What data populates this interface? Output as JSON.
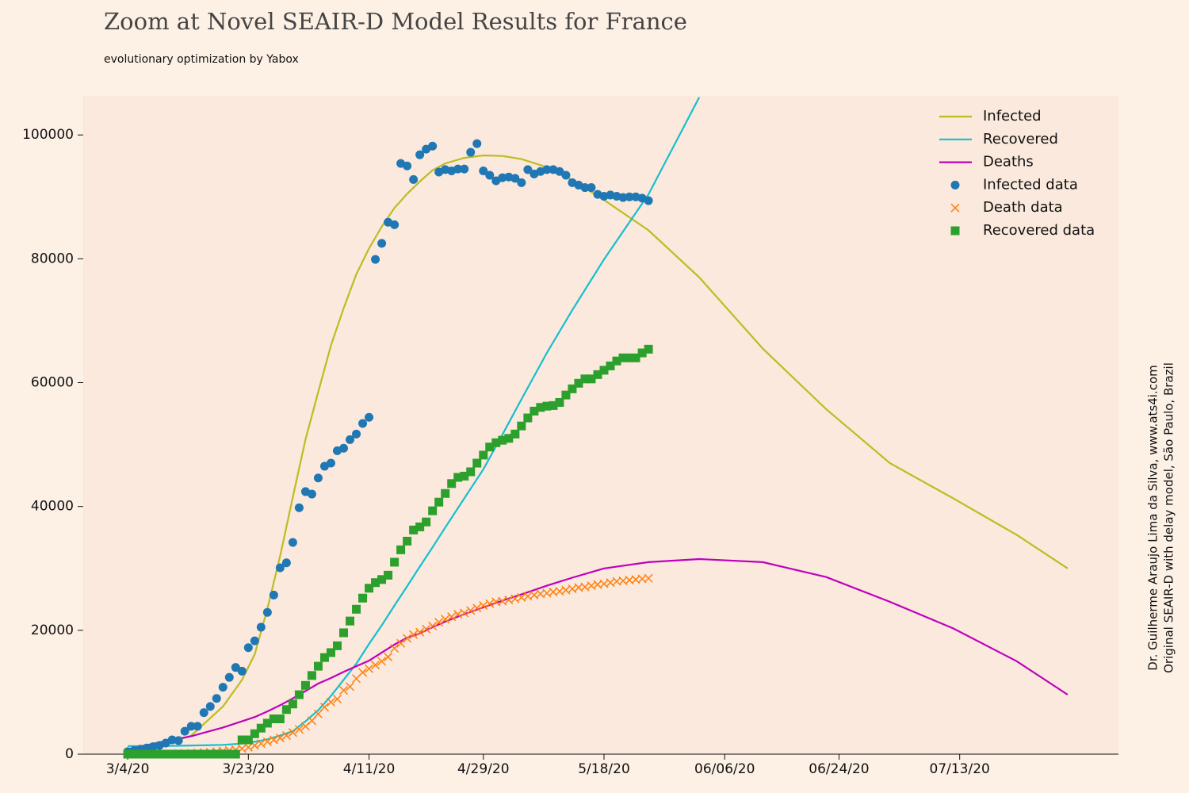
{
  "chart_data": {
    "type": "line",
    "title": "Zoom at Novel SEAIR-D Model Results for France",
    "subtitle": "evolutionary optimization by Yabox",
    "annotations": [
      "Dr. Guilherme Araujo Lima da Silva, www.ats4i.com",
      "Original SEAIR-D with delay model, São Paulo, Brazil"
    ],
    "xlim": [
      "2/26/20",
      "8/7/20"
    ],
    "xticks": [
      "3/4/20",
      "3/23/20",
      "4/11/20",
      "4/29/20",
      "5/18/20",
      {
        "value": "6/6/20",
        "label": "06/06/20"
      },
      {
        "value": "6/24/20",
        "label": "06/24/20"
      },
      {
        "value": "7/13/20",
        "label": "07/13/20"
      }
    ],
    "ylim": [
      0,
      106300
    ],
    "yticks": [
      0,
      20000,
      40000,
      60000,
      80000,
      100000
    ],
    "grid": false,
    "legend": "upper right",
    "x": [
      "3/4/20",
      "3/5/20",
      "3/6/20",
      "3/7/20",
      "3/8/20",
      "3/9/20",
      "3/10/20",
      "3/11/20",
      "3/12/20",
      "3/13/20",
      "3/14/20",
      "3/15/20",
      "3/16/20",
      "3/17/20",
      "3/18/20",
      "3/19/20",
      "3/20/20",
      "3/21/20",
      "3/22/20",
      "3/23/20",
      "3/24/20",
      "3/25/20",
      "3/26/20",
      "3/27/20",
      "3/28/20",
      "3/29/20",
      "3/30/20",
      "3/31/20",
      "4/1/20",
      "4/2/20",
      "4/3/20",
      "4/4/20",
      "4/5/20",
      "4/6/20",
      "4/7/20",
      "4/8/20",
      "4/9/20",
      "4/10/20",
      "4/11/20",
      "4/12/20",
      "4/13/20",
      "4/14/20",
      "4/15/20",
      "4/16/20",
      "4/17/20",
      "4/18/20",
      "4/19/20",
      "4/20/20",
      "4/21/20",
      "4/22/20",
      "4/23/20",
      "4/24/20",
      "4/25/20",
      "4/26/20",
      "4/27/20",
      "4/28/20",
      "4/29/20",
      "4/30/20",
      "5/1/20",
      "5/2/20",
      "5/3/20",
      "5/4/20",
      "5/5/20",
      "5/6/20",
      "5/7/20",
      "5/8/20",
      "5/9/20",
      "5/10/20",
      "5/11/20",
      "5/12/20",
      "5/13/20",
      "5/14/20",
      "5/15/20",
      "5/16/20",
      "5/17/20",
      "5/18/20",
      "5/19/20",
      "5/20/20",
      "5/21/20",
      "5/22/20",
      "5/23/20",
      "5/24/20",
      "5/25/20"
    ],
    "series": [
      {
        "name": "Infected",
        "color": "#bcbd22",
        "x": [
          "3/4/20",
          "3/9/20",
          "3/14/20",
          "3/19/20",
          "3/22/20",
          "3/24/20",
          "3/26/20",
          "3/28/20",
          "3/30/20",
          "4/1/20",
          "4/3/20",
          "4/5/20",
          "4/7/20",
          "4/9/20",
          "4/11/20",
          "4/13/20",
          "4/15/20",
          "4/17/20",
          "4/19/20",
          "4/21/20",
          "4/23/20",
          "4/26/20",
          "4/29/20",
          "5/2/20",
          "5/5/20",
          "5/9/20",
          "5/13/20",
          "5/18/20",
          "5/25/20",
          "6/2/20",
          "6/12/20",
          "6/22/20",
          "7/2/20",
          "7/12/20",
          "7/22/20",
          "7/30/20"
        ],
        "values": [
          800,
          1300,
          3000,
          7700,
          12000,
          16100,
          23500,
          32000,
          41500,
          50800,
          58500,
          66000,
          72000,
          77500,
          81700,
          85200,
          88200,
          90500,
          92500,
          94300,
          95400,
          96300,
          96700,
          96600,
          96100,
          94800,
          92700,
          89500,
          84600,
          77000,
          65500,
          55700,
          47000,
          41300,
          35400,
          30000
        ]
      },
      {
        "name": "Recovered",
        "color": "#17becf",
        "x": [
          "3/4/20",
          "3/9/20",
          "3/14/20",
          "3/19/20",
          "3/22/20",
          "3/24/20",
          "3/26/20",
          "3/28/20",
          "3/30/20",
          "4/1/20",
          "4/3/20",
          "4/5/20",
          "4/7/20",
          "4/9/20",
          "4/11/20",
          "4/13/20",
          "4/15/20",
          "4/17/20",
          "4/19/20",
          "4/21/20",
          "4/23/20",
          "4/26/20",
          "4/29/20",
          "5/2/20",
          "5/5/20",
          "5/9/20",
          "5/13/20",
          "5/18/20",
          "5/25/20",
          "6/2/20"
        ],
        "values": [
          1300,
          1300,
          1400,
          1500,
          1700,
          2000,
          2400,
          3000,
          3700,
          5300,
          7100,
          9400,
          12000,
          14600,
          17800,
          20800,
          24000,
          27100,
          30300,
          33400,
          36600,
          41300,
          46000,
          51600,
          57300,
          64800,
          71700,
          79900,
          90400,
          106100
        ]
      },
      {
        "name": "Deaths",
        "color": "#bf00bf",
        "x": [
          "3/4/20",
          "3/9/20",
          "3/14/20",
          "3/19/20",
          "3/22/20",
          "3/24/20",
          "3/26/20",
          "3/28/20",
          "3/30/20",
          "4/1/20",
          "4/3/20",
          "4/5/20",
          "4/7/20",
          "4/9/20",
          "4/11/20",
          "4/13/20",
          "4/15/20",
          "4/17/20",
          "4/19/20",
          "4/21/20",
          "4/23/20",
          "4/26/20",
          "4/29/20",
          "5/2/20",
          "5/5/20",
          "5/9/20",
          "5/13/20",
          "5/18/20",
          "5/25/20",
          "6/2/20",
          "6/12/20",
          "6/22/20",
          "7/2/20",
          "7/12/20",
          "7/22/20",
          "7/30/20"
        ],
        "values": [
          800,
          1900,
          2900,
          4300,
          5300,
          6000,
          6900,
          7900,
          9000,
          10200,
          11400,
          12300,
          13300,
          14200,
          15100,
          16400,
          17700,
          18800,
          19500,
          20500,
          21400,
          22600,
          23700,
          24800,
          25800,
          27200,
          28500,
          30000,
          31000,
          31500,
          31000,
          28600,
          24600,
          20300,
          15000,
          9600
        ]
      },
      {
        "name": "Infected data",
        "color": "#1f77b4",
        "marker": "o",
        "values": [
          400,
          600,
          800,
          1000,
          1200,
          1400,
          1800,
          2300,
          2200,
          3700,
          4500,
          4500,
          6700,
          7700,
          9000,
          10800,
          12400,
          14000,
          13400,
          17200,
          18300,
          20500,
          22900,
          25700,
          30100,
          30900,
          34200,
          39800,
          42400,
          42000,
          44600,
          46500,
          47000,
          49000,
          49400,
          50800,
          51700,
          53400,
          54400,
          79900,
          82500,
          85900,
          85500,
          95400,
          95000,
          92800,
          96800,
          97700,
          98200,
          94000,
          94400,
          94200,
          94500,
          94500,
          97200,
          98600,
          94200,
          93500,
          92600,
          93100,
          93200,
          93000,
          92300,
          94400,
          93700,
          94100,
          94400,
          94400,
          94100,
          93500,
          92300,
          91900,
          91500,
          91500,
          90400,
          90100,
          90300,
          90100,
          89900,
          90000,
          90000,
          89800,
          89400
        ]
      },
      {
        "name": "Death data",
        "color": "#ff7f0e",
        "marker": "x",
        "values": [
          0,
          0,
          0,
          0,
          0,
          0,
          0,
          0,
          100,
          100,
          100,
          200,
          200,
          300,
          400,
          500,
          600,
          700,
          900,
          1100,
          1400,
          1700,
          2000,
          2300,
          2600,
          3000,
          3500,
          4000,
          4500,
          5400,
          6500,
          7600,
          8400,
          8900,
          10300,
          10900,
          12200,
          13200,
          13800,
          14400,
          15000,
          15700,
          17100,
          17900,
          18700,
          19300,
          19700,
          20200,
          20700,
          21300,
          21800,
          22200,
          22600,
          22800,
          23200,
          23600,
          24000,
          24300,
          24600,
          24700,
          24900,
          25100,
          25300,
          25500,
          25700,
          25900,
          26000,
          26200,
          26300,
          26500,
          26700,
          26900,
          27000,
          27200,
          27400,
          27500,
          27700,
          27900,
          28000,
          28100,
          28200,
          28300,
          28400
        ]
      },
      {
        "name": "Recovered data",
        "color": "#2ca02c",
        "marker": "s",
        "values": [
          0,
          0,
          0,
          0,
          0,
          0,
          0,
          0,
          0,
          0,
          0,
          0,
          0,
          0,
          0,
          0,
          0,
          0,
          2300,
          2300,
          3300,
          4200,
          5000,
          5700,
          5700,
          7200,
          8100,
          9600,
          11100,
          12700,
          14200,
          15600,
          16400,
          17500,
          19600,
          21500,
          23400,
          25200,
          26800,
          27700,
          28200,
          28900,
          31000,
          33000,
          34400,
          36200,
          36700,
          37500,
          39300,
          40700,
          42100,
          43700,
          44700,
          44900,
          45600,
          47000,
          48300,
          49600,
          50300,
          50700,
          51000,
          51700,
          53000,
          54300,
          55400,
          56000,
          56200,
          56300,
          56800,
          58000,
          59000,
          59900,
          60600,
          60600,
          61300,
          62000,
          62700,
          63500,
          64000,
          64000,
          64000,
          64800,
          65400
        ]
      }
    ]
  }
}
